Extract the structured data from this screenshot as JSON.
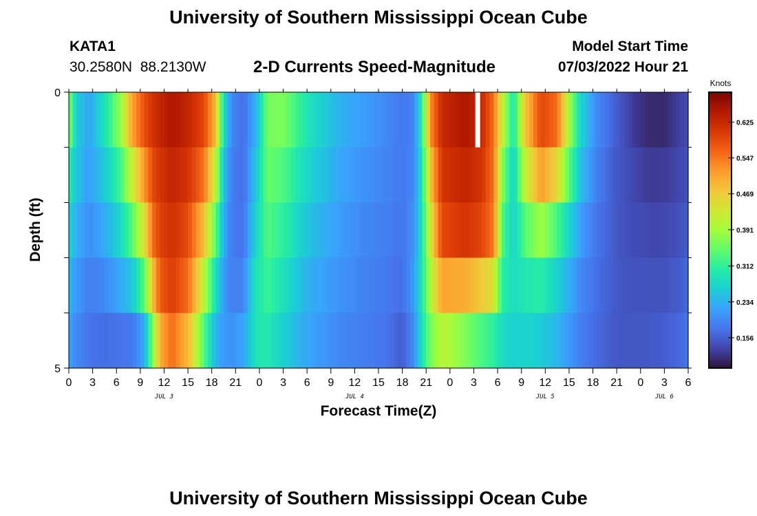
{
  "header": {
    "title": "University of Southern Mississippi Ocean Cube",
    "station": "KATA1",
    "coords": "30.2580N  88.2130W",
    "subtitle": "2-D Currents Speed-Magnitude",
    "model_label": "Model Start Time",
    "model_time": "07/03/2022 Hour 21"
  },
  "footer": {
    "title": "University of Southern Mississippi Ocean Cube"
  },
  "colors": {
    "background": "#ffffff",
    "frame": "#000000"
  },
  "chart_data": {
    "type": "heatmap",
    "title": "2-D Currents Speed-Magnitude",
    "xlabel": "Forecast Time(Z)",
    "ylabel": "Depth (ft)",
    "x_start_hour": 0,
    "x_end_hour": 78,
    "x_ticks": [
      {
        "h": 0,
        "label": "0"
      },
      {
        "h": 3,
        "label": "3"
      },
      {
        "h": 6,
        "label": "6"
      },
      {
        "h": 9,
        "label": "9"
      },
      {
        "h": 12,
        "label": "12"
      },
      {
        "h": 15,
        "label": "15"
      },
      {
        "h": 18,
        "label": "18"
      },
      {
        "h": 21,
        "label": "21"
      },
      {
        "h": 24,
        "label": "0"
      },
      {
        "h": 27,
        "label": "3"
      },
      {
        "h": 30,
        "label": "6"
      },
      {
        "h": 33,
        "label": "9"
      },
      {
        "h": 36,
        "label": "12"
      },
      {
        "h": 39,
        "label": "15"
      },
      {
        "h": 42,
        "label": "18"
      },
      {
        "h": 45,
        "label": "21"
      },
      {
        "h": 48,
        "label": "0"
      },
      {
        "h": 51,
        "label": "3"
      },
      {
        "h": 54,
        "label": "6"
      },
      {
        "h": 57,
        "label": "9"
      },
      {
        "h": 60,
        "label": "12"
      },
      {
        "h": 63,
        "label": "15"
      },
      {
        "h": 66,
        "label": "18"
      },
      {
        "h": 69,
        "label": "21"
      },
      {
        "h": 72,
        "label": "0"
      },
      {
        "h": 75,
        "label": "3"
      },
      {
        "h": 78,
        "label": "6"
      }
    ],
    "date_labels": [
      {
        "h": 12,
        "label": "JUL 3"
      },
      {
        "h": 36,
        "label": "JUL 4"
      },
      {
        "h": 60,
        "label": "JUL 5"
      },
      {
        "h": 75,
        "label": "JUL 6"
      }
    ],
    "y_range": [
      0,
      5
    ],
    "y_ticks": [
      {
        "v": 0,
        "label": "0"
      },
      {
        "v": 5,
        "label": "5"
      }
    ],
    "depth_levels": 5,
    "colorbar": {
      "unit_label": "Knots",
      "min": 0.09,
      "max": 0.69,
      "ticks": [
        "0.156",
        "0.234",
        "0.312",
        "0.391",
        "0.469",
        "0.547",
        "0.625"
      ]
    },
    "colormap": [
      "#30123b",
      "#4145ab",
      "#4675ed",
      "#39a2fc",
      "#1bcfd4",
      "#24eca6",
      "#61fc6c",
      "#a4fc3b",
      "#d1e834",
      "#f3c63a",
      "#fe9b2d",
      "#f36315",
      "#d93806",
      "#b11901",
      "#7a0402"
    ],
    "profiles": [
      {
        "hour": 0,
        "values": [
          0.42,
          0.32,
          0.29,
          0.25,
          0.23,
          0.21
        ]
      },
      {
        "hour": 1,
        "values": [
          0.26,
          0.26,
          0.24,
          0.22,
          0.2,
          0.19
        ]
      },
      {
        "hour": 2.5,
        "values": [
          0.22,
          0.22,
          0.21,
          0.19,
          0.18,
          0.17
        ]
      },
      {
        "hour": 4.5,
        "values": [
          0.3,
          0.27,
          0.24,
          0.21,
          0.18,
          0.16
        ]
      },
      {
        "hour": 6.5,
        "values": [
          0.41,
          0.35,
          0.3,
          0.25,
          0.2,
          0.15
        ]
      },
      {
        "hour": 8,
        "values": [
          0.56,
          0.46,
          0.38,
          0.3,
          0.21,
          0.15
        ]
      },
      {
        "hour": 9.5,
        "values": [
          0.6,
          0.56,
          0.48,
          0.4,
          0.28,
          0.17
        ]
      },
      {
        "hour": 10.5,
        "values": [
          0.62,
          0.6,
          0.57,
          0.53,
          0.42,
          0.3
        ]
      },
      {
        "hour": 11.5,
        "values": [
          0.64,
          0.62,
          0.6,
          0.59,
          0.55,
          0.45
        ]
      },
      {
        "hour": 13,
        "values": [
          0.66,
          0.64,
          0.62,
          0.61,
          0.59,
          0.52
        ]
      },
      {
        "hour": 15,
        "values": [
          0.64,
          0.62,
          0.6,
          0.57,
          0.54,
          0.44
        ]
      },
      {
        "hour": 17,
        "values": [
          0.6,
          0.58,
          0.52,
          0.45,
          0.38,
          0.3
        ]
      },
      {
        "hour": 18.5,
        "values": [
          0.52,
          0.45,
          0.38,
          0.31,
          0.25,
          0.22
        ]
      },
      {
        "hour": 19.5,
        "values": [
          0.3,
          0.26,
          0.24,
          0.22,
          0.21,
          0.21
        ]
      },
      {
        "hour": 20.5,
        "values": [
          0.2,
          0.19,
          0.18,
          0.18,
          0.19,
          0.22
        ]
      },
      {
        "hour": 22,
        "values": [
          0.17,
          0.17,
          0.17,
          0.18,
          0.2,
          0.24
        ]
      },
      {
        "hour": 23.5,
        "values": [
          0.22,
          0.24,
          0.26,
          0.28,
          0.3,
          0.28
        ]
      },
      {
        "hour": 25,
        "values": [
          0.36,
          0.36,
          0.34,
          0.33,
          0.31,
          0.29
        ]
      },
      {
        "hour": 27,
        "values": [
          0.38,
          0.35,
          0.32,
          0.3,
          0.27,
          0.26
        ]
      },
      {
        "hour": 29,
        "values": [
          0.33,
          0.3,
          0.28,
          0.26,
          0.24,
          0.23
        ]
      },
      {
        "hour": 31,
        "values": [
          0.28,
          0.27,
          0.25,
          0.23,
          0.22,
          0.21
        ]
      },
      {
        "hour": 34,
        "values": [
          0.24,
          0.23,
          0.22,
          0.21,
          0.2,
          0.19
        ]
      },
      {
        "hour": 37,
        "values": [
          0.22,
          0.21,
          0.2,
          0.19,
          0.19,
          0.18
        ]
      },
      {
        "hour": 40,
        "values": [
          0.2,
          0.19,
          0.19,
          0.18,
          0.18,
          0.17
        ]
      },
      {
        "hour": 42,
        "values": [
          0.18,
          0.18,
          0.18,
          0.17,
          0.17,
          0.14
        ]
      },
      {
        "hour": 43.5,
        "values": [
          0.19,
          0.19,
          0.2,
          0.21,
          0.22,
          0.18
        ]
      },
      {
        "hour": 44.5,
        "values": [
          0.32,
          0.3,
          0.29,
          0.29,
          0.3,
          0.28
        ]
      },
      {
        "hour": 45.5,
        "values": [
          0.55,
          0.5,
          0.45,
          0.42,
          0.38,
          0.34
        ]
      },
      {
        "hour": 47,
        "values": [
          0.63,
          0.62,
          0.6,
          0.58,
          0.44,
          0.38
        ]
      },
      {
        "hour": 50,
        "values": [
          0.66,
          0.64,
          0.62,
          0.6,
          0.4,
          0.33
        ]
      },
      {
        "hour": 52,
        "values": [
          0.63,
          0.62,
          0.6,
          0.58,
          0.36,
          0.3
        ]
      },
      {
        "hour": 53.5,
        "values": [
          0.55,
          0.55,
          0.55,
          0.54,
          0.34,
          0.28
        ]
      },
      {
        "hour": 54.5,
        "values": [
          0.46,
          0.4,
          0.36,
          0.32,
          0.3,
          0.26
        ]
      },
      {
        "hour": 56,
        "values": [
          0.3,
          0.27,
          0.26,
          0.27,
          0.29,
          0.24
        ]
      },
      {
        "hour": 57.5,
        "values": [
          0.5,
          0.45,
          0.38,
          0.3,
          0.29,
          0.25
        ]
      },
      {
        "hour": 59.5,
        "values": [
          0.6,
          0.58,
          0.45,
          0.33,
          0.28,
          0.24
        ]
      },
      {
        "hour": 61.5,
        "values": [
          0.58,
          0.53,
          0.38,
          0.28,
          0.25,
          0.22
        ]
      },
      {
        "hour": 63,
        "values": [
          0.4,
          0.38,
          0.3,
          0.24,
          0.22,
          0.2
        ]
      },
      {
        "hour": 64.5,
        "values": [
          0.28,
          0.26,
          0.23,
          0.2,
          0.19,
          0.18
        ]
      },
      {
        "hour": 66.5,
        "values": [
          0.2,
          0.19,
          0.18,
          0.17,
          0.17,
          0.16
        ]
      },
      {
        "hour": 69,
        "values": [
          0.16,
          0.15,
          0.15,
          0.15,
          0.15,
          0.15
        ]
      },
      {
        "hour": 71,
        "values": [
          0.12,
          0.13,
          0.14,
          0.14,
          0.15,
          0.15
        ]
      },
      {
        "hour": 73,
        "values": [
          0.1,
          0.12,
          0.13,
          0.14,
          0.15,
          0.15
        ]
      },
      {
        "hour": 75,
        "values": [
          0.1,
          0.12,
          0.13,
          0.14,
          0.15,
          0.16
        ]
      },
      {
        "hour": 77,
        "values": [
          0.13,
          0.13,
          0.14,
          0.15,
          0.16,
          0.17
        ]
      },
      {
        "hour": 78,
        "values": [
          0.14,
          0.14,
          0.15,
          0.16,
          0.17,
          0.18
        ]
      }
    ],
    "gap_hour": 51.5
  }
}
